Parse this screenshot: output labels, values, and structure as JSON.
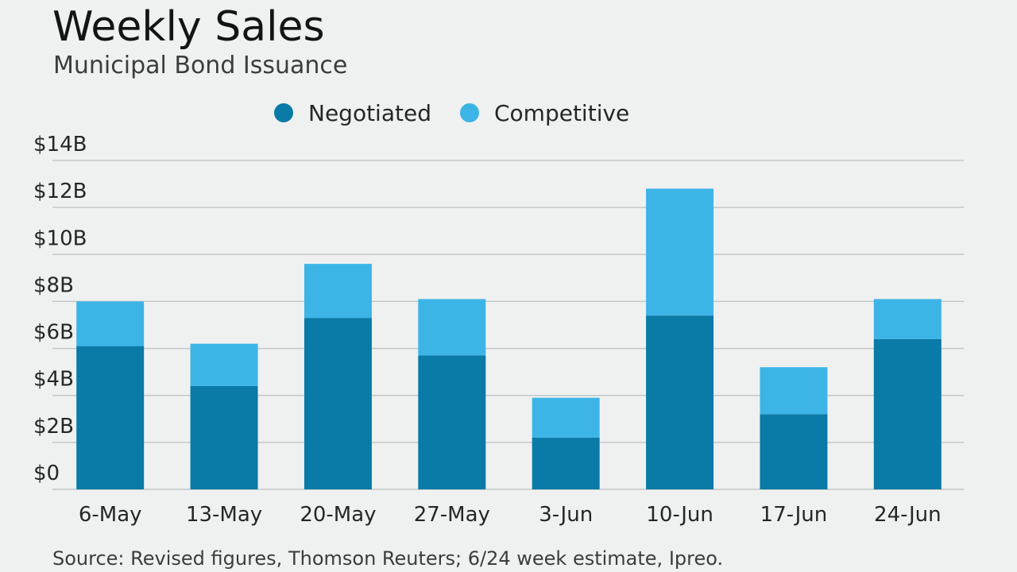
{
  "chart_data": {
    "type": "bar",
    "stacked": true,
    "title": "Weekly Sales",
    "subtitle": "Municipal Bond Issuance",
    "source": "Source: Revised figures, Thomson Reuters; 6/24 week estimate, Ipreo.",
    "categories": [
      "6-May",
      "13-May",
      "20-May",
      "27-May",
      "3-Jun",
      "10-Jun",
      "17-Jun",
      "24-Jun"
    ],
    "series": [
      {
        "name": "Negotiated",
        "color": "#0a7aa6",
        "values": [
          6.1,
          4.4,
          7.3,
          5.7,
          2.2,
          7.4,
          3.2,
          6.4
        ]
      },
      {
        "name": "Competitive",
        "color": "#3db4e6",
        "values": [
          1.9,
          1.8,
          2.3,
          2.4,
          1.7,
          5.4,
          2.0,
          1.7
        ]
      }
    ],
    "ylim": [
      0,
      14
    ],
    "yticks": [
      0,
      2,
      4,
      6,
      8,
      10,
      12,
      14
    ],
    "ytick_labels": [
      "$0",
      "$2B",
      "$4B",
      "$6B",
      "$8B",
      "$10B",
      "$12B",
      "$14B"
    ],
    "xlabel": "",
    "ylabel": "",
    "grid": true,
    "legend_position": "top-center"
  }
}
